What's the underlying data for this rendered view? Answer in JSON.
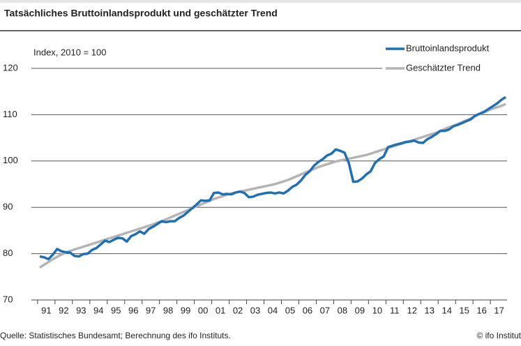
{
  "chart_data": {
    "type": "line",
    "title": "Tatsächliches Bruttoinlandsprodukt und geschätzter Trend",
    "y_label": "Index, 2010 = 100",
    "source": "Quelle: Statistisches Bundesamt; Berechnung des ifo Instituts.",
    "credit": "© ifo Institut",
    "categories": [
      "91",
      null,
      null,
      null,
      "92",
      null,
      null,
      null,
      "93",
      null,
      null,
      null,
      "94",
      null,
      null,
      null,
      "95",
      null,
      null,
      null,
      "96",
      null,
      null,
      null,
      "97",
      null,
      null,
      null,
      "98",
      null,
      null,
      null,
      "99",
      null,
      null,
      null,
      "00",
      null,
      null,
      null,
      "01",
      null,
      null,
      null,
      "02",
      null,
      null,
      null,
      "03",
      null,
      null,
      null,
      "04",
      null,
      null,
      null,
      "05",
      null,
      null,
      null,
      "06",
      null,
      null,
      null,
      "07",
      null,
      null,
      null,
      "08",
      null,
      null,
      null,
      "09",
      null,
      null,
      null,
      "10",
      null,
      null,
      null,
      "11",
      null,
      null,
      null,
      "12",
      null,
      null,
      null,
      "13",
      null,
      null,
      null,
      "14",
      null,
      null,
      null,
      "15",
      null,
      null,
      null,
      "16",
      null,
      null,
      null,
      "17",
      null,
      null,
      null
    ],
    "series": [
      {
        "name": "Bruttoinlandsprodukt",
        "color": "#1f6fb5",
        "values": [
          79.4,
          79.2,
          78.8,
          79.8,
          81.0,
          80.5,
          80.3,
          80.2,
          79.5,
          79.4,
          79.9,
          80.0,
          80.8,
          81.2,
          82.0,
          82.8,
          82.5,
          83.0,
          83.4,
          83.3,
          82.6,
          83.8,
          84.2,
          84.8,
          84.3,
          85.3,
          85.8,
          86.4,
          87.0,
          86.8,
          87.0,
          87.0,
          87.7,
          88.2,
          89.0,
          89.8,
          90.6,
          91.5,
          91.4,
          91.5,
          93.1,
          93.2,
          92.8,
          92.9,
          92.8,
          93.2,
          93.4,
          93.1,
          92.2,
          92.3,
          92.7,
          92.9,
          93.1,
          93.2,
          93.0,
          93.2,
          93.0,
          93.6,
          94.4,
          94.9,
          95.8,
          97.0,
          97.8,
          99.0,
          99.8,
          100.4,
          101.2,
          101.6,
          102.5,
          102.2,
          101.8,
          99.5,
          95.5,
          95.6,
          96.2,
          97.1,
          97.8,
          99.6,
          100.4,
          101.0,
          103.0,
          103.3,
          103.6,
          103.8,
          104.1,
          104.2,
          104.4,
          104.0,
          103.9,
          104.7,
          105.2,
          105.8,
          106.5,
          106.5,
          106.8,
          107.5,
          107.8,
          108.2,
          108.6,
          109.0,
          109.8,
          110.2,
          110.6,
          111.2,
          111.8,
          112.4,
          113.2,
          113.8
        ]
      },
      {
        "name": "Geschätzter Trend",
        "color": "#b4b4b4",
        "values": [
          77.0,
          77.6,
          78.2,
          78.8,
          79.3,
          79.8,
          80.2,
          80.6,
          80.9,
          81.2,
          81.5,
          81.8,
          82.1,
          82.4,
          82.7,
          83.0,
          83.3,
          83.6,
          83.9,
          84.2,
          84.5,
          84.8,
          85.1,
          85.4,
          85.7,
          86.0,
          86.3,
          86.7,
          87.0,
          87.4,
          87.8,
          88.2,
          88.6,
          89.0,
          89.4,
          89.8,
          90.2,
          90.6,
          91.0,
          91.4,
          91.8,
          92.1,
          92.4,
          92.7,
          93.0,
          93.2,
          93.4,
          93.6,
          93.8,
          94.0,
          94.2,
          94.4,
          94.6,
          94.8,
          95.0,
          95.3,
          95.6,
          95.9,
          96.3,
          96.7,
          97.1,
          97.5,
          97.9,
          98.3,
          98.7,
          99.0,
          99.3,
          99.6,
          99.9,
          100.1,
          100.3,
          100.5,
          100.7,
          100.9,
          101.1,
          101.3,
          101.6,
          101.9,
          102.2,
          102.5,
          102.8,
          103.1,
          103.4,
          103.7,
          104.0,
          104.3,
          104.6,
          104.9,
          105.2,
          105.5,
          105.8,
          106.1,
          106.5,
          106.9,
          107.3,
          107.6,
          108.0,
          108.4,
          108.8,
          109.2,
          109.7,
          110.1,
          110.5,
          110.9,
          111.3,
          111.6,
          111.9,
          112.3
        ]
      }
    ],
    "ylim": [
      70,
      120
    ],
    "yticks": [
      70,
      80,
      90,
      100,
      110,
      120
    ],
    "grid": true,
    "legend": "top-right"
  }
}
